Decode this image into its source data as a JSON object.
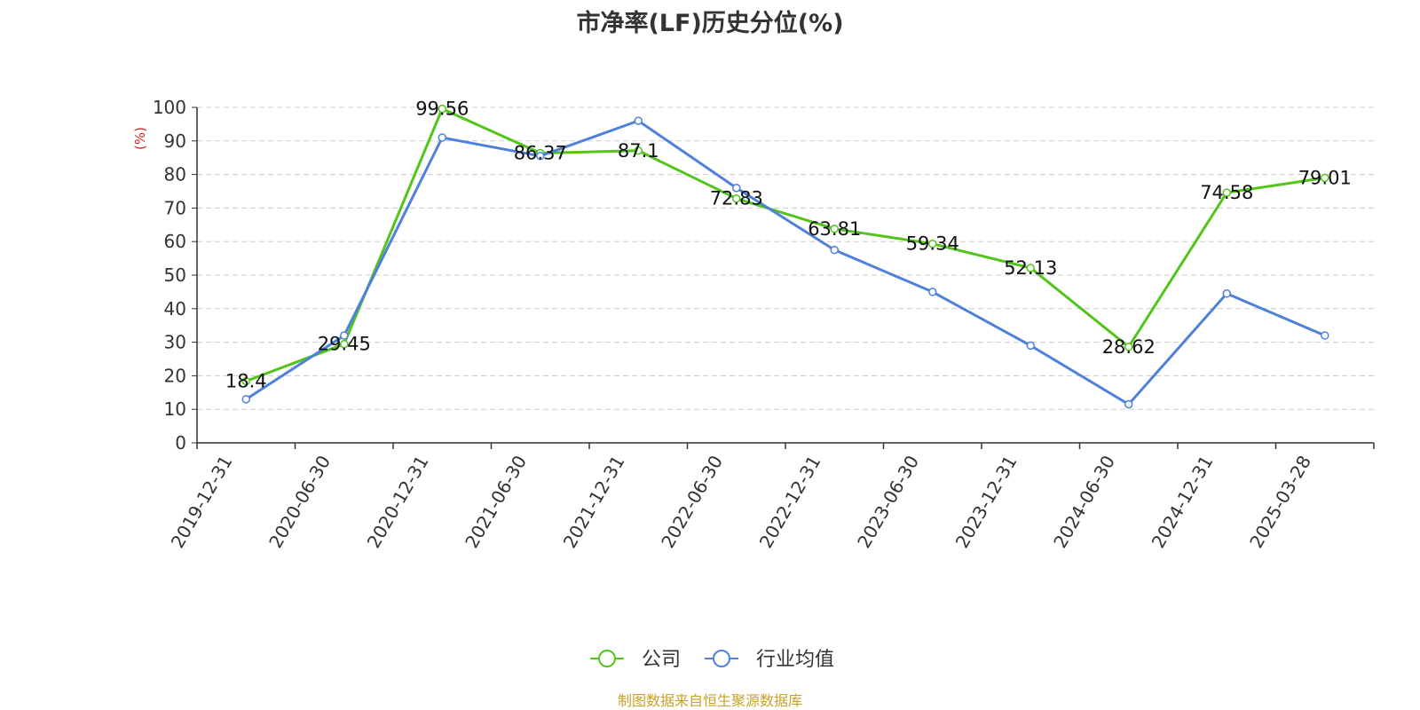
{
  "chart_data": {
    "type": "line",
    "title": "市净率(LF)历史分位(%)",
    "ylabel": "(%)",
    "ylim": [
      0,
      100
    ],
    "yticks": [
      0,
      10,
      20,
      30,
      40,
      50,
      60,
      70,
      80,
      90,
      100
    ],
    "categories": [
      "2019-12-31",
      "2020-06-30",
      "2020-12-31",
      "2021-06-30",
      "2021-12-31",
      "2022-06-30",
      "2022-12-31",
      "2023-06-30",
      "2023-12-31",
      "2024-06-30",
      "2024-12-31",
      "2025-03-28"
    ],
    "series": [
      {
        "name": "公司",
        "color": "#52c41a",
        "values": [
          18.4,
          29.45,
          99.56,
          86.37,
          87.1,
          72.83,
          63.81,
          59.34,
          52.13,
          28.62,
          74.58,
          79.01
        ],
        "data_labels": [
          "18.4",
          "29.45",
          "99.56",
          "86.37",
          "87.1",
          "72.83",
          "63.81",
          "59.34",
          "52.13",
          "28.62",
          "74.58",
          "79.01"
        ]
      },
      {
        "name": "行业均值",
        "color": "#4e80dc",
        "values": [
          13,
          32,
          91,
          85.5,
          96,
          76,
          57.5,
          45,
          29,
          11.5,
          44.5,
          32
        ]
      }
    ],
    "grid": true,
    "legend": "bottom-center"
  },
  "footer": {
    "source": "制图数据来自恒生聚源数据库"
  }
}
